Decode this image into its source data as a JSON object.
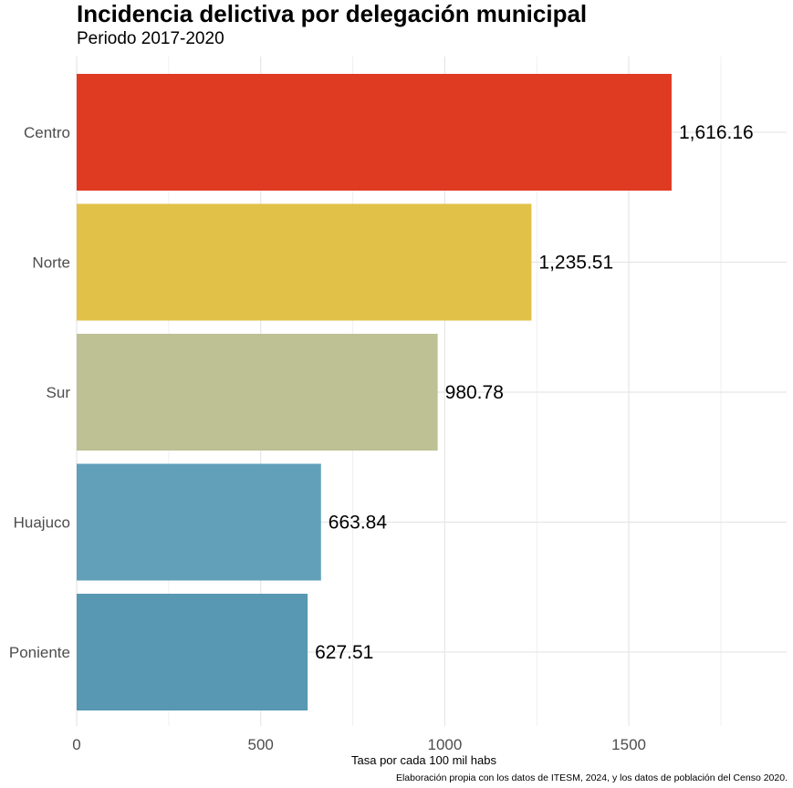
{
  "chart_data": {
    "type": "bar",
    "orientation": "horizontal",
    "title": "Incidencia delictiva por delegación municipal",
    "subtitle": "Periodo 2017-2020",
    "xlabel": "Tasa por cada 100 mil habs",
    "caption": "Elaboración propia con los datos de ITESM, 2024, y los datos de población del Censo 2020.",
    "categories": [
      "Centro",
      "Norte",
      "Sur",
      "Huajuco",
      "Poniente"
    ],
    "values": [
      1616.16,
      1235.51,
      980.78,
      663.84,
      627.51
    ],
    "data_labels": [
      "1,616.16",
      "1,235.51",
      "980.78",
      "663.84",
      "627.51"
    ],
    "colors": [
      "#df3b23",
      "#e2c148",
      "#bdc194",
      "#62a0b9",
      "#5898b2"
    ],
    "xticks": [
      0,
      500,
      1000,
      1500
    ],
    "xlim": [
      0,
      1940
    ],
    "grid": true,
    "legend": "none"
  }
}
